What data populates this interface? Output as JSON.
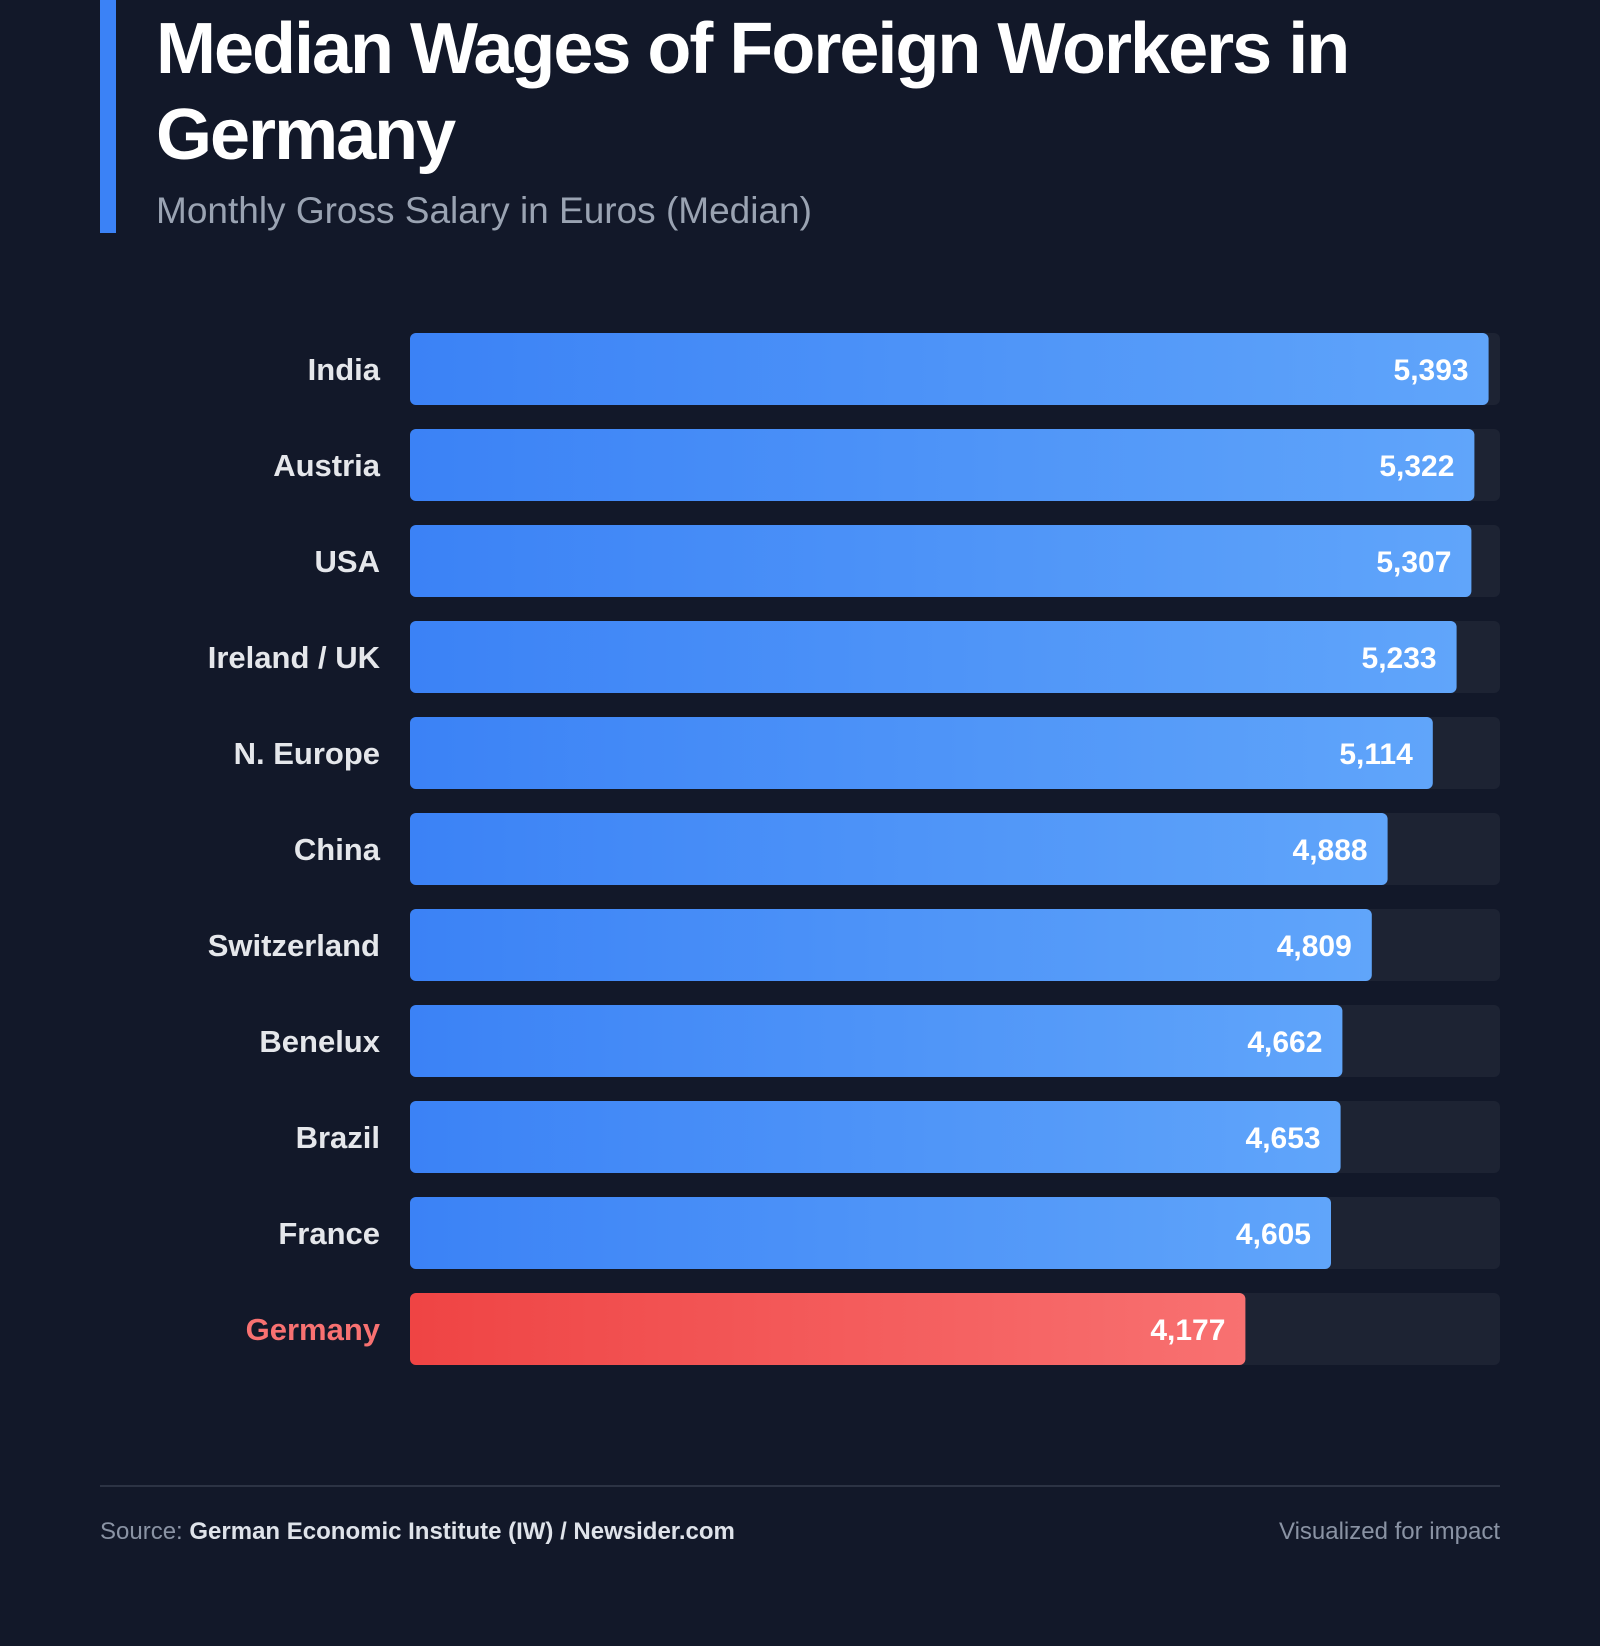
{
  "header": {
    "title": "Median Wages of Foreign Workers in Germany",
    "subtitle": "Monthly Gross Salary in Euros (Median)"
  },
  "colors": {
    "background": "#121829",
    "track": "#1d2333",
    "bar_start": "#3b82f6",
    "bar_end": "#60a5fa",
    "highlight_start": "#ef4444",
    "highlight_end": "#f87171",
    "highlight_label": "#f87171",
    "label": "#e5e7eb"
  },
  "chart_data": {
    "type": "bar",
    "orientation": "horizontal",
    "title": "Median Wages of Foreign Workers in Germany",
    "subtitle": "Monthly Gross Salary in Euros (Median)",
    "xlabel": "",
    "ylabel": "",
    "xlim": [
      0,
      5450
    ],
    "grid": false,
    "categories": [
      "India",
      "Austria",
      "USA",
      "Ireland / UK",
      "N. Europe",
      "China",
      "Switzerland",
      "Benelux",
      "Brazil",
      "France",
      "Germany"
    ],
    "values": [
      5393,
      5322,
      5307,
      5233,
      5114,
      4888,
      4809,
      4662,
      4653,
      4605,
      4177
    ],
    "value_labels": [
      "5,393",
      "5,322",
      "5,307",
      "5,233",
      "5,114",
      "4,888",
      "4,809",
      "4,662",
      "4,653",
      "4,605",
      "4,177"
    ],
    "highlight": "Germany"
  },
  "footer": {
    "source_prefix": "Source:",
    "source_name": "German Economic Institute (IW) / Newsider.com",
    "tagline": "Visualized for impact"
  }
}
